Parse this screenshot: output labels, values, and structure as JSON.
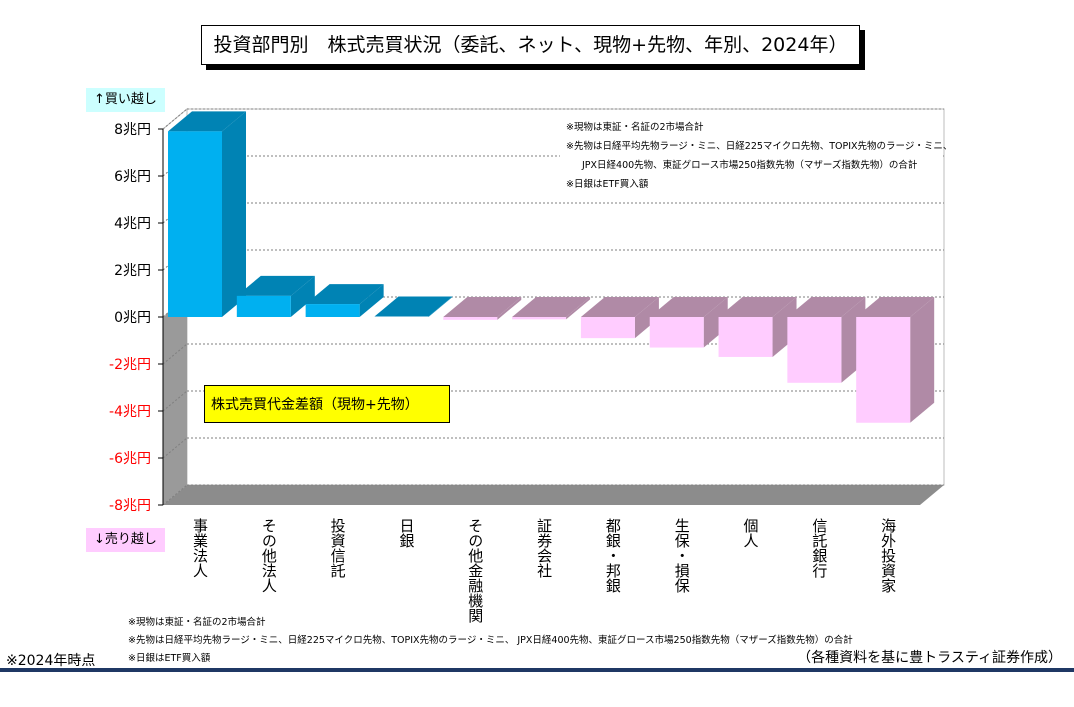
{
  "title": "投資部門別　株式売買状況（委託、ネット、現物+先物、年別、2024年）",
  "buy_label": "↑買い越し",
  "sell_label": "↓売り越し",
  "box_label": "株式売買代金差額（現物+先物）",
  "notes": [
    "※現物は東証・名証の2市場合計",
    "※先物は日経平均先物ラージ・ミニ、日経225マイクロ先物、TOPIX先物のラージ・ミニ、",
    "JPX日経400先物、東証グロース市場250指数先物（マザーズ指数先物）の合計",
    "※日銀はETF買入額"
  ],
  "footnotes": [
    "※現物は東証・名証の2市場合計",
    "※先物は日経平均先物ラージ・ミニ、日経225マイクロ先物、TOPIX先物のラージ・ミニ、 JPX日経400先物、東証グロース市場250指数先物（マザーズ指数先物）の合計",
    "※日銀はETF買入額"
  ],
  "as_of": "※2024年時点",
  "credit": "（各種資料を基に豊トラスティ証券作成）",
  "colors": {
    "positive_front": "#00b0f0",
    "positive_side": "#0083b4",
    "negative_front": "#ffccff",
    "negative_side": "#b08aa6",
    "negative_tick": "#ff0000",
    "buy_badge": "#ccffff",
    "sell_badge": "#ffccff"
  },
  "chart_data": {
    "type": "bar",
    "categories": [
      "事業法人",
      "その他法人",
      "投資信託",
      "日銀",
      "その他金融機関",
      "証券会社",
      "都銀・邦銀",
      "生保・損保",
      "個人",
      "信託銀行",
      "海外投資家"
    ],
    "values": [
      7.9,
      0.9,
      0.55,
      0.02,
      -0.12,
      -0.1,
      -0.9,
      -1.3,
      -1.7,
      -2.8,
      -4.5
    ],
    "y_ticks": [
      "8兆円",
      "6兆円",
      "4兆円",
      "2兆円",
      "0兆円",
      "-2兆円",
      "-4兆円",
      "-6兆円",
      "-8兆円"
    ],
    "y_tick_values": [
      8,
      6,
      4,
      2,
      0,
      -2,
      -4,
      -6,
      -8
    ],
    "ylim": [
      -8,
      8
    ],
    "grid": true,
    "unit": "兆円"
  }
}
